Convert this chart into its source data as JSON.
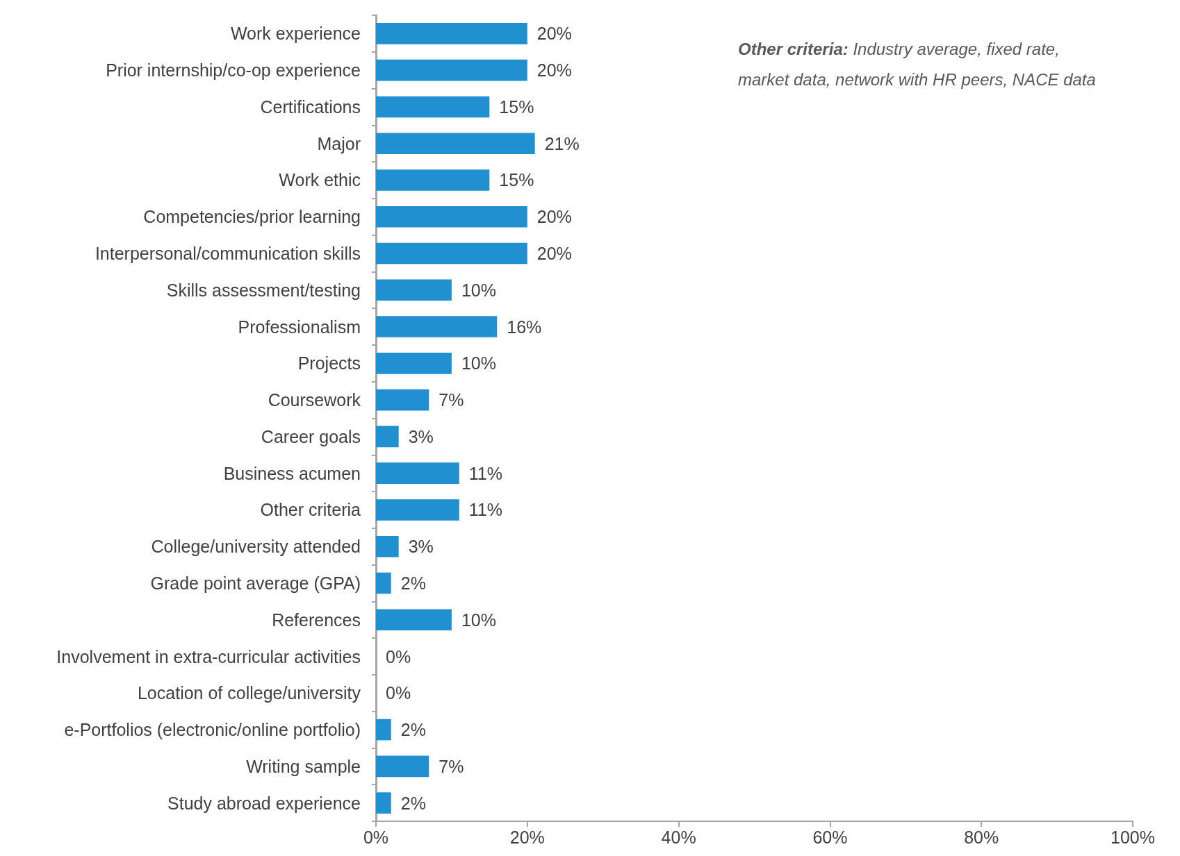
{
  "chart_data": {
    "type": "bar",
    "orientation": "horizontal",
    "categories": [
      "Work experience",
      "Prior internship/co-op experience",
      "Certifications",
      "Major",
      "Work ethic",
      "Competencies/prior learning",
      "Interpersonal/communication skills",
      "Skills assessment/testing",
      "Professionalism",
      "Projects",
      "Coursework",
      "Career goals",
      "Business acumen",
      "Other criteria",
      "College/university attended",
      "Grade point average (GPA)",
      "References",
      "Involvement in extra-curricular activities",
      "Location of college/university",
      "e-Portfolios (electronic/online portfolio)",
      "Writing sample",
      "Study abroad experience"
    ],
    "values": [
      20,
      20,
      15,
      21,
      15,
      20,
      20,
      10,
      16,
      10,
      7,
      3,
      11,
      11,
      3,
      2,
      10,
      0,
      0,
      2,
      7,
      2
    ],
    "value_labels": [
      "20%",
      "20%",
      "15%",
      "21%",
      "15%",
      "20%",
      "20%",
      "10%",
      "16%",
      "10%",
      "7%",
      "3%",
      "11%",
      "11%",
      "3%",
      "2%",
      "10%",
      "0%",
      "0%",
      "2%",
      "7%",
      "2%"
    ],
    "color": "#2190d0",
    "xlim": [
      0,
      100
    ],
    "xticks": [
      {
        "value": 0,
        "label": "0%"
      },
      {
        "value": 20,
        "label": "20%"
      },
      {
        "value": 40,
        "label": "40%"
      },
      {
        "value": 60,
        "label": "60%"
      },
      {
        "value": 80,
        "label": "80%"
      },
      {
        "value": 100,
        "label": "100%"
      }
    ],
    "grid": false,
    "annotations": [
      "Other criteria: Industry average, fixed rate, market data, network with HR peers, NACE data"
    ]
  }
}
